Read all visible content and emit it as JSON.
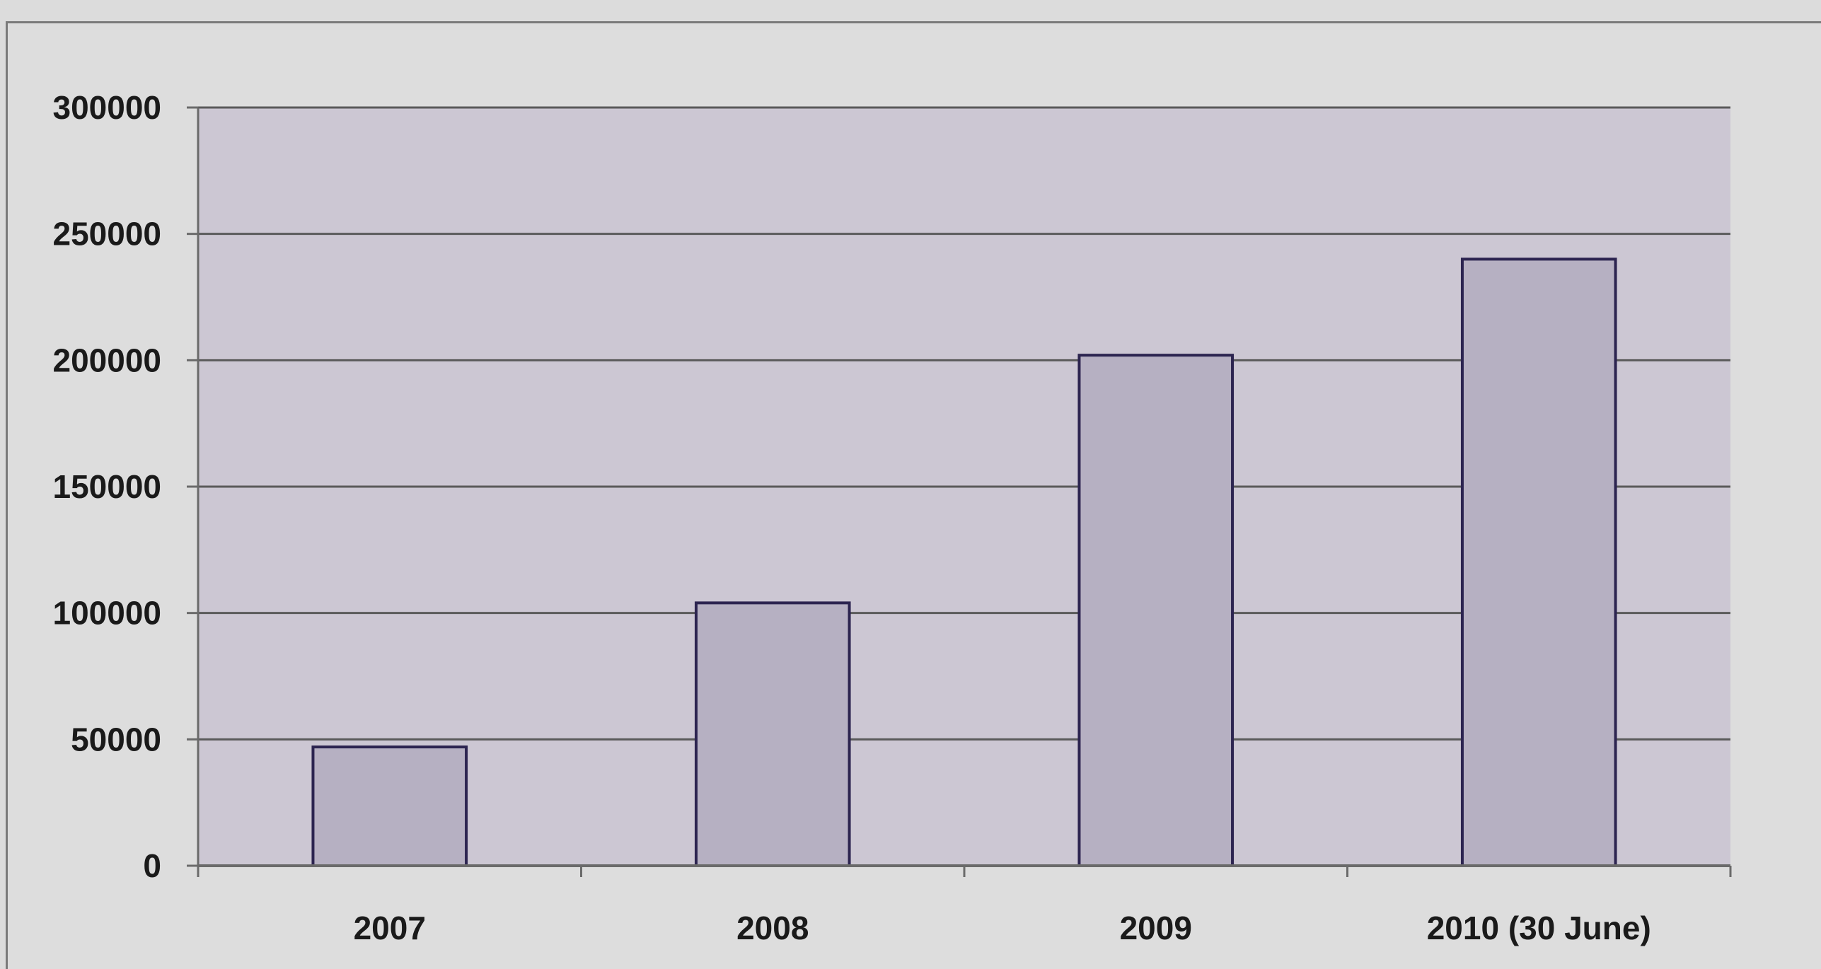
{
  "chart_data": {
    "type": "bar",
    "categories": [
      "2007",
      "2008",
      "2009",
      "2010 (30 June)"
    ],
    "values": [
      47000,
      104000,
      202000,
      240000
    ],
    "title": "",
    "xlabel": "",
    "ylabel": "",
    "ylim": [
      0,
      300000
    ],
    "yticks": [
      "0",
      "50000",
      "100000",
      "150000",
      "200000",
      "250000",
      "300000"
    ],
    "grid": true,
    "legend": "none",
    "colors": {
      "background": "#dddddd",
      "plot_area": "#ccc7d3",
      "bar_fill": "#b6b0c2",
      "bar_stroke": "#2c2450",
      "gridline": "#5a5a5a",
      "axis": "#6a6a6a"
    }
  }
}
